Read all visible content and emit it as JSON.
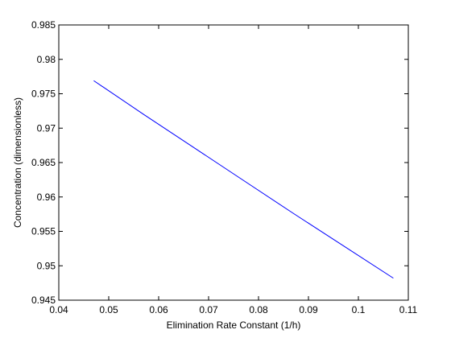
{
  "chart_data": {
    "type": "line",
    "title": "",
    "xlabel": "Elimination Rate Constant (1/h)",
    "ylabel": "Concentration (dimensionless)",
    "xlim": [
      0.04,
      0.11
    ],
    "ylim": [
      0.945,
      0.985
    ],
    "xticks": [
      0.04,
      0.05,
      0.06,
      0.07,
      0.08,
      0.09,
      0.1,
      0.11
    ],
    "yticks": [
      0.945,
      0.95,
      0.955,
      0.96,
      0.965,
      0.97,
      0.975,
      0.98,
      0.985
    ],
    "xtick_labels": [
      "0.04",
      "0.05",
      "0.06",
      "0.07",
      "0.08",
      "0.09",
      "0.1",
      "0.11"
    ],
    "ytick_labels": [
      "0.945",
      "0.95",
      "0.955",
      "0.96",
      "0.965",
      "0.97",
      "0.975",
      "0.98",
      "0.985"
    ],
    "grid": false,
    "series": [
      {
        "color": "#0000ff",
        "x": [
          0.047,
          0.057,
          0.067,
          0.077,
          0.087,
          0.097,
          0.107
        ],
        "y": [
          0.9769,
          0.972,
          0.9672,
          0.9624,
          0.9576,
          0.9529,
          0.9482
        ]
      }
    ]
  }
}
